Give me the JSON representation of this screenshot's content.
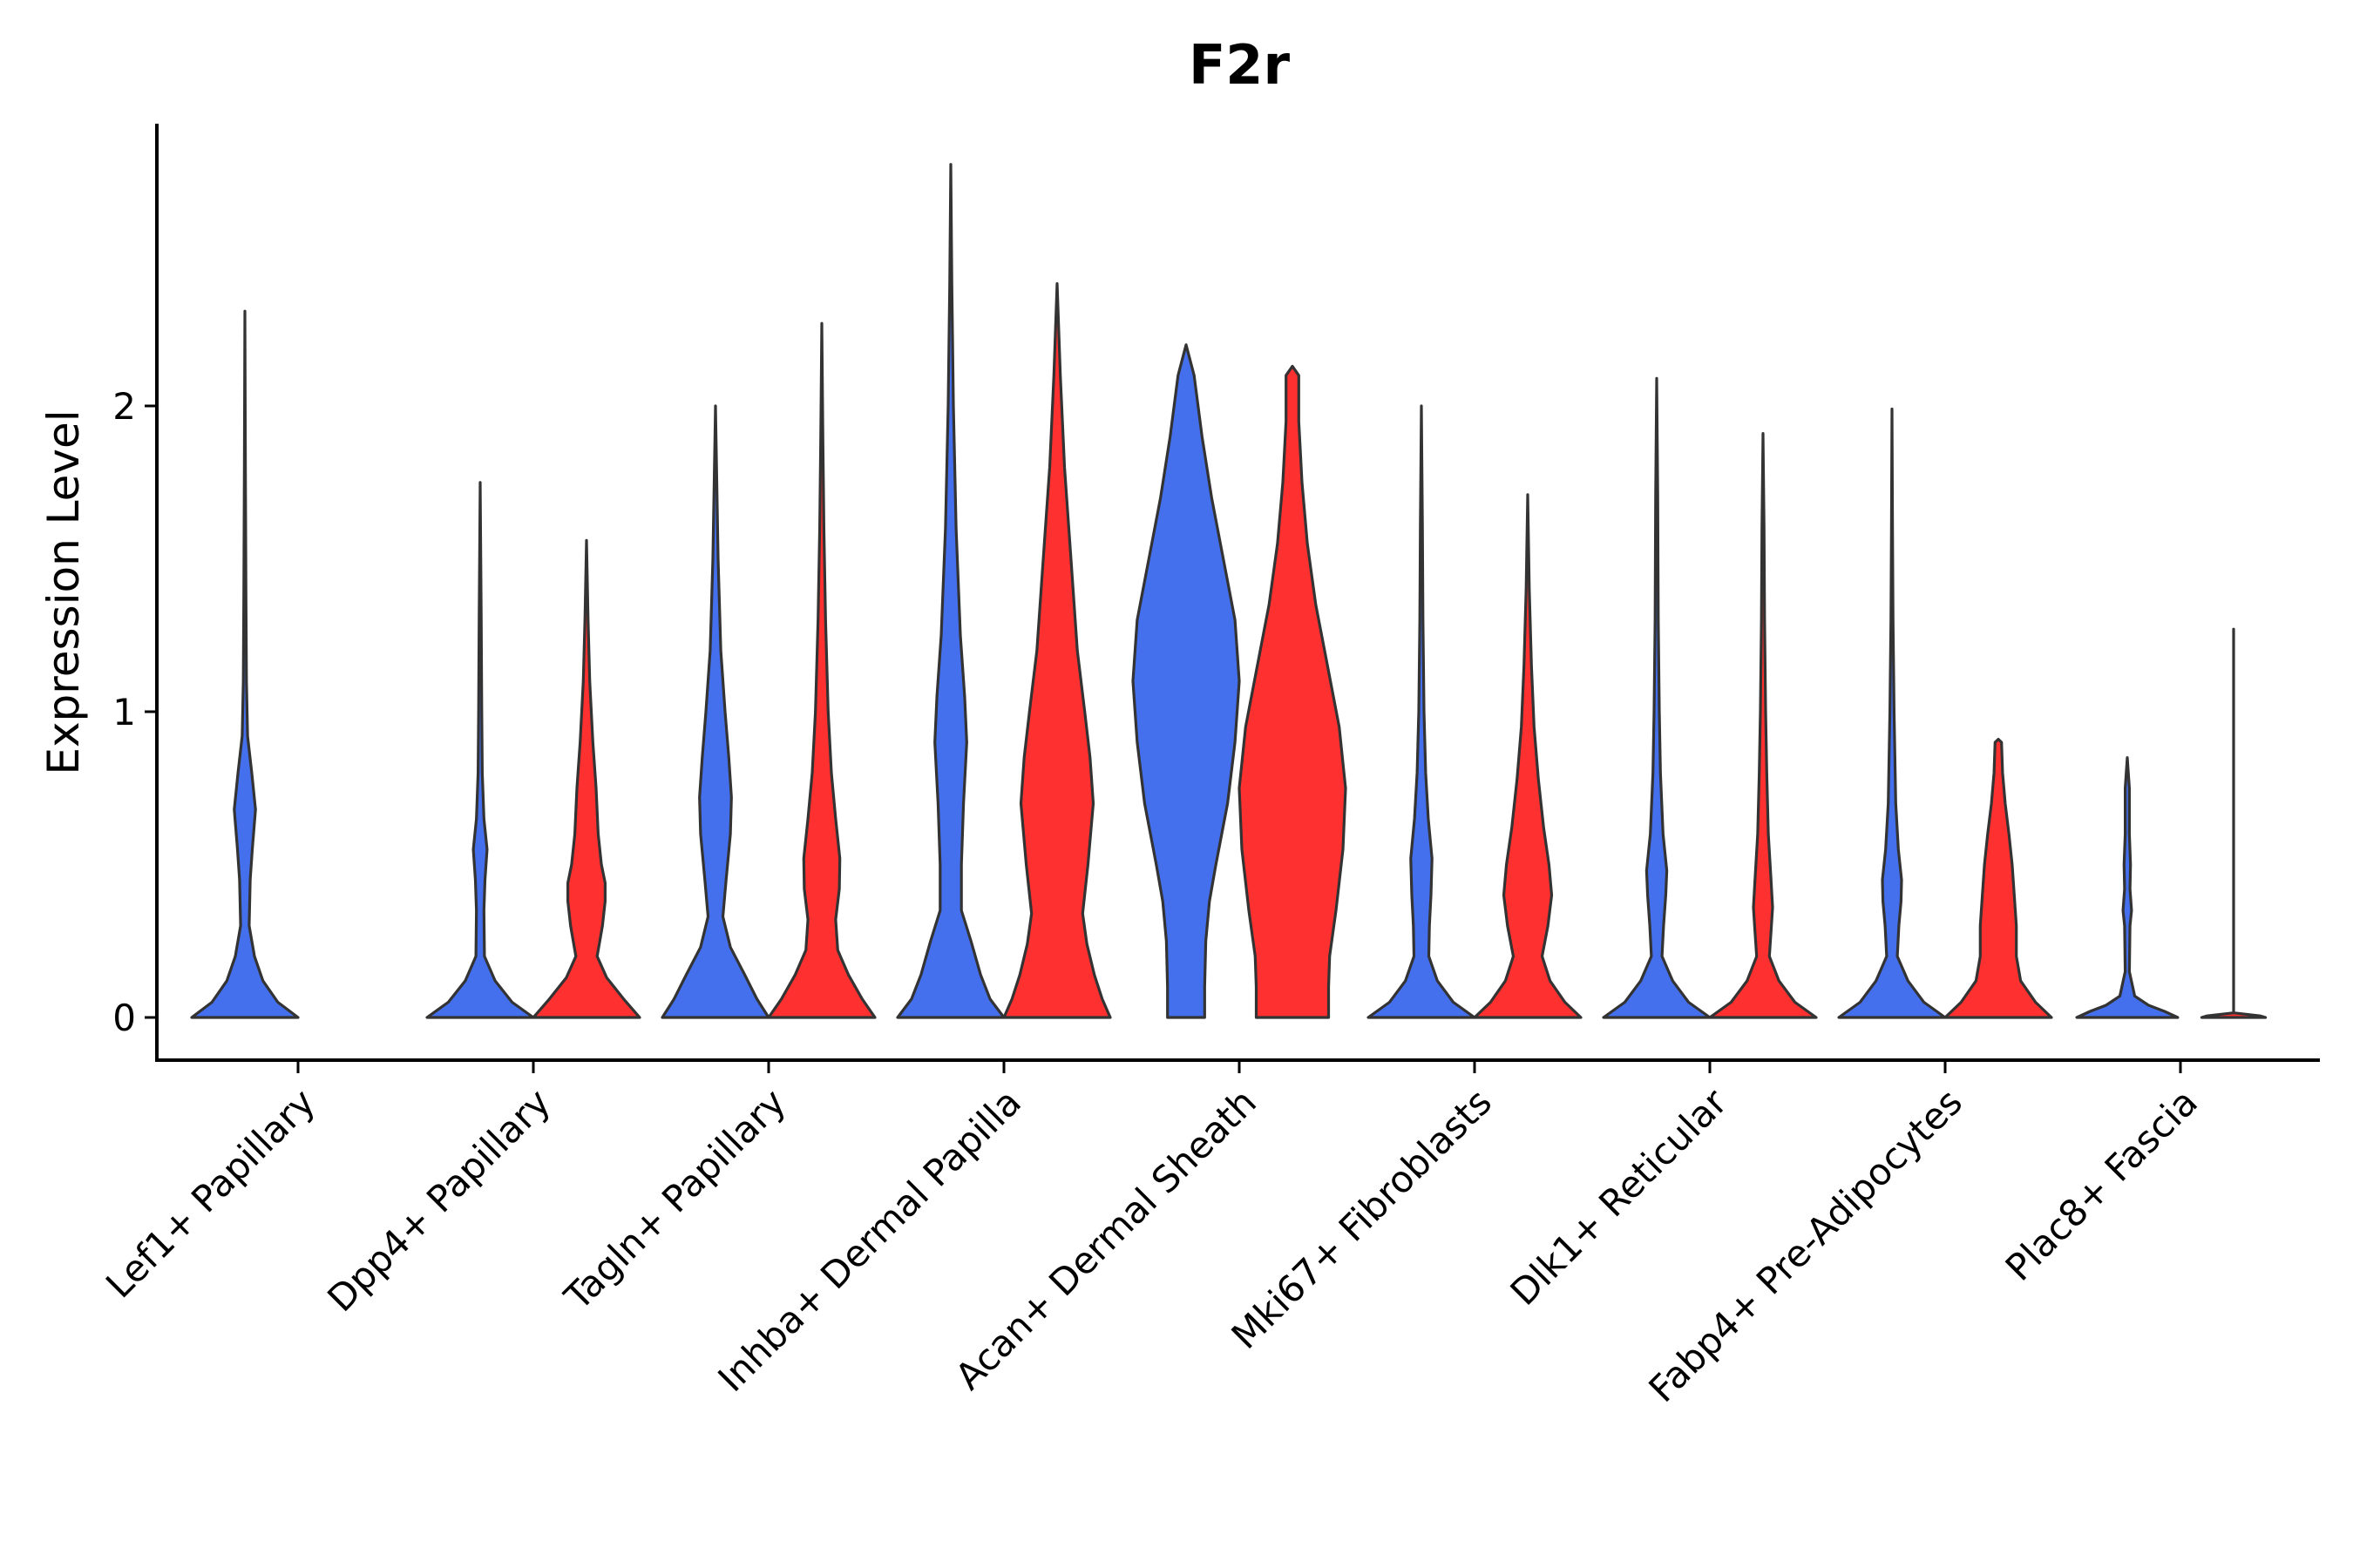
{
  "chart_data": {
    "type": "violin",
    "title": "F2r",
    "xlabel": "",
    "ylabel": "Expression Level",
    "ylim": [
      -0.14,
      2.95
    ],
    "yticks": [
      0,
      1,
      2
    ],
    "grid": false,
    "categories": [
      "Lef1+ Papillary",
      "Dpp4+ Papillary",
      "Tagln+ Papillary",
      "Inhba+ Dermal Papilla",
      "Acan+ Dermal Sheath",
      "Mki67+ Fibroblasts",
      "Dlk1+ Reticular",
      "Fabp4+ Pre-Adipocytes",
      "Plac8+ Fascia"
    ],
    "colors": {
      "group1": "#4570ED",
      "group2": "#FF3030"
    },
    "series": [
      {
        "name": "group1",
        "color": "#4570ED",
        "violins": [
          {
            "category": "Lef1+ Papillary",
            "max": 2.31,
            "profile": [
              [
                0,
                1.0
              ],
              [
                0.05,
                0.62
              ],
              [
                0.12,
                0.34
              ],
              [
                0.2,
                0.18
              ],
              [
                0.3,
                0.08
              ],
              [
                0.45,
                0.1
              ],
              [
                0.55,
                0.14
              ],
              [
                0.68,
                0.2
              ],
              [
                0.8,
                0.13
              ],
              [
                0.92,
                0.05
              ],
              [
                1.1,
                0.03
              ],
              [
                1.4,
                0.02
              ],
              [
                1.8,
                0.01
              ],
              [
                2.31,
                0.0
              ]
            ]
          },
          {
            "category": "Dpp4+ Papillary",
            "max": 1.75,
            "profile": [
              [
                0,
                1.0
              ],
              [
                0.05,
                0.6
              ],
              [
                0.12,
                0.28
              ],
              [
                0.2,
                0.08
              ],
              [
                0.35,
                0.07
              ],
              [
                0.45,
                0.09
              ],
              [
                0.55,
                0.13
              ],
              [
                0.65,
                0.07
              ],
              [
                0.8,
                0.04
              ],
              [
                1.0,
                0.03
              ],
              [
                1.3,
                0.02
              ],
              [
                1.75,
                0.0
              ]
            ]
          },
          {
            "category": "Tagln+ Papillary",
            "max": 2.0,
            "profile": [
              [
                0,
                1.0
              ],
              [
                0.06,
                0.78
              ],
              [
                0.14,
                0.55
              ],
              [
                0.23,
                0.28
              ],
              [
                0.33,
                0.14
              ],
              [
                0.45,
                0.2
              ],
              [
                0.6,
                0.28
              ],
              [
                0.72,
                0.3
              ],
              [
                0.85,
                0.25
              ],
              [
                1.0,
                0.18
              ],
              [
                1.2,
                0.1
              ],
              [
                1.5,
                0.05
              ],
              [
                1.8,
                0.02
              ],
              [
                2.0,
                0.0
              ]
            ]
          },
          {
            "category": "Inhba+ Dermal Papilla",
            "max": 2.79,
            "profile": [
              [
                0,
                1.0
              ],
              [
                0.06,
                0.74
              ],
              [
                0.14,
                0.56
              ],
              [
                0.25,
                0.38
              ],
              [
                0.35,
                0.2
              ],
              [
                0.5,
                0.2
              ],
              [
                0.7,
                0.24
              ],
              [
                0.9,
                0.3
              ],
              [
                1.05,
                0.26
              ],
              [
                1.25,
                0.18
              ],
              [
                1.6,
                0.1
              ],
              [
                2.0,
                0.05
              ],
              [
                2.4,
                0.02
              ],
              [
                2.79,
                0.0
              ]
            ]
          },
          {
            "category": "Acan+ Dermal Sheath",
            "max": 2.2,
            "profile": [
              [
                0,
                0.35
              ],
              [
                0.1,
                0.35
              ],
              [
                0.25,
                0.37
              ],
              [
                0.38,
                0.44
              ],
              [
                0.5,
                0.56
              ],
              [
                0.7,
                0.78
              ],
              [
                0.9,
                0.92
              ],
              [
                1.1,
                1.0
              ],
              [
                1.3,
                0.92
              ],
              [
                1.5,
                0.7
              ],
              [
                1.7,
                0.48
              ],
              [
                1.9,
                0.3
              ],
              [
                2.1,
                0.15
              ],
              [
                2.2,
                0.0
              ]
            ]
          },
          {
            "category": "Mki67+ Fibroblasts",
            "max": 2.0,
            "profile": [
              [
                0,
                1.0
              ],
              [
                0.05,
                0.6
              ],
              [
                0.12,
                0.3
              ],
              [
                0.2,
                0.14
              ],
              [
                0.3,
                0.15
              ],
              [
                0.4,
                0.18
              ],
              [
                0.52,
                0.2
              ],
              [
                0.65,
                0.13
              ],
              [
                0.8,
                0.08
              ],
              [
                1.0,
                0.05
              ],
              [
                1.3,
                0.03
              ],
              [
                1.6,
                0.02
              ],
              [
                2.0,
                0.0
              ]
            ]
          },
          {
            "category": "Dlk1+ Reticular",
            "max": 2.09,
            "profile": [
              [
                0,
                1.0
              ],
              [
                0.05,
                0.6
              ],
              [
                0.12,
                0.3
              ],
              [
                0.2,
                0.1
              ],
              [
                0.3,
                0.13
              ],
              [
                0.4,
                0.17
              ],
              [
                0.48,
                0.19
              ],
              [
                0.6,
                0.12
              ],
              [
                0.8,
                0.07
              ],
              [
                1.0,
                0.05
              ],
              [
                1.3,
                0.03
              ],
              [
                1.7,
                0.02
              ],
              [
                2.09,
                0.0
              ]
            ]
          },
          {
            "category": "Fabp4+ Pre-Adipocytes",
            "max": 1.99,
            "profile": [
              [
                0,
                1.0
              ],
              [
                0.05,
                0.6
              ],
              [
                0.12,
                0.3
              ],
              [
                0.2,
                0.1
              ],
              [
                0.3,
                0.13
              ],
              [
                0.38,
                0.17
              ],
              [
                0.45,
                0.18
              ],
              [
                0.55,
                0.12
              ],
              [
                0.7,
                0.07
              ],
              [
                1.0,
                0.04
              ],
              [
                1.3,
                0.02
              ],
              [
                1.6,
                0.01
              ],
              [
                1.99,
                0.0
              ]
            ]
          },
          {
            "category": "Plac8+ Fascia",
            "max": 0.85,
            "profile": [
              [
                0,
                0.95
              ],
              [
                0.02,
                0.7
              ],
              [
                0.04,
                0.4
              ],
              [
                0.07,
                0.14
              ],
              [
                0.15,
                0.04
              ],
              [
                0.3,
                0.05
              ],
              [
                0.35,
                0.08
              ],
              [
                0.42,
                0.05
              ],
              [
                0.5,
                0.06
              ],
              [
                0.6,
                0.04
              ],
              [
                0.75,
                0.04
              ],
              [
                0.85,
                0.0
              ]
            ]
          }
        ]
      },
      {
        "name": "group2",
        "color": "#FF3030",
        "violins": [
          {
            "category": "Dpp4+ Papillary",
            "max": 1.56,
            "profile": [
              [
                0,
                1.0
              ],
              [
                0.06,
                0.7
              ],
              [
                0.13,
                0.38
              ],
              [
                0.2,
                0.2
              ],
              [
                0.3,
                0.3
              ],
              [
                0.38,
                0.35
              ],
              [
                0.44,
                0.35
              ],
              [
                0.5,
                0.28
              ],
              [
                0.6,
                0.22
              ],
              [
                0.75,
                0.18
              ],
              [
                0.9,
                0.12
              ],
              [
                1.1,
                0.06
              ],
              [
                1.3,
                0.03
              ],
              [
                1.56,
                0.0
              ]
            ]
          },
          {
            "category": "Tagln+ Papillary",
            "max": 2.27,
            "profile": [
              [
                0,
                1.0
              ],
              [
                0.06,
                0.76
              ],
              [
                0.14,
                0.5
              ],
              [
                0.22,
                0.3
              ],
              [
                0.32,
                0.26
              ],
              [
                0.42,
                0.33
              ],
              [
                0.52,
                0.34
              ],
              [
                0.65,
                0.26
              ],
              [
                0.8,
                0.18
              ],
              [
                1.0,
                0.12
              ],
              [
                1.3,
                0.07
              ],
              [
                1.6,
                0.04
              ],
              [
                1.9,
                0.02
              ],
              [
                2.27,
                0.0
              ]
            ]
          },
          {
            "category": "Inhba+ Dermal Papilla",
            "max": 2.4,
            "profile": [
              [
                0,
                1.0
              ],
              [
                0.06,
                0.85
              ],
              [
                0.14,
                0.7
              ],
              [
                0.24,
                0.56
              ],
              [
                0.34,
                0.48
              ],
              [
                0.5,
                0.58
              ],
              [
                0.7,
                0.68
              ],
              [
                0.85,
                0.62
              ],
              [
                1.0,
                0.52
              ],
              [
                1.2,
                0.38
              ],
              [
                1.5,
                0.26
              ],
              [
                1.8,
                0.14
              ],
              [
                2.1,
                0.06
              ],
              [
                2.4,
                0.0
              ]
            ]
          },
          {
            "category": "Acan+ Dermal Sheath",
            "max": 2.13,
            "profile": [
              [
                0,
                0.68
              ],
              [
                0.1,
                0.68
              ],
              [
                0.2,
                0.7
              ],
              [
                0.35,
                0.82
              ],
              [
                0.55,
                0.95
              ],
              [
                0.75,
                1.0
              ],
              [
                0.95,
                0.88
              ],
              [
                1.15,
                0.66
              ],
              [
                1.35,
                0.44
              ],
              [
                1.55,
                0.28
              ],
              [
                1.75,
                0.18
              ],
              [
                1.95,
                0.12
              ],
              [
                2.1,
                0.12
              ],
              [
                2.13,
                0.0
              ]
            ]
          },
          {
            "category": "Mki67+ Fibroblasts",
            "max": 1.71,
            "profile": [
              [
                0,
                1.0
              ],
              [
                0.05,
                0.7
              ],
              [
                0.12,
                0.42
              ],
              [
                0.2,
                0.27
              ],
              [
                0.3,
                0.38
              ],
              [
                0.4,
                0.45
              ],
              [
                0.5,
                0.4
              ],
              [
                0.62,
                0.3
              ],
              [
                0.78,
                0.2
              ],
              [
                0.95,
                0.12
              ],
              [
                1.15,
                0.07
              ],
              [
                1.4,
                0.03
              ],
              [
                1.71,
                0.0
              ]
            ]
          },
          {
            "category": "Dlk1+ Reticular",
            "max": 1.91,
            "profile": [
              [
                0,
                1.0
              ],
              [
                0.05,
                0.6
              ],
              [
                0.12,
                0.3
              ],
              [
                0.2,
                0.12
              ],
              [
                0.28,
                0.15
              ],
              [
                0.36,
                0.18
              ],
              [
                0.45,
                0.15
              ],
              [
                0.6,
                0.1
              ],
              [
                0.8,
                0.07
              ],
              [
                1.0,
                0.05
              ],
              [
                1.3,
                0.03
              ],
              [
                1.6,
                0.02
              ],
              [
                1.91,
                0.0
              ]
            ]
          },
          {
            "category": "Fabp4+ Pre-Adipocytes",
            "max": 0.91,
            "profile": [
              [
                0,
                1.0
              ],
              [
                0.05,
                0.7
              ],
              [
                0.12,
                0.42
              ],
              [
                0.2,
                0.34
              ],
              [
                0.3,
                0.34
              ],
              [
                0.4,
                0.3
              ],
              [
                0.5,
                0.26
              ],
              [
                0.6,
                0.2
              ],
              [
                0.7,
                0.13
              ],
              [
                0.8,
                0.08
              ],
              [
                0.85,
                0.07
              ],
              [
                0.9,
                0.06
              ],
              [
                0.91,
                0.0
              ]
            ]
          },
          {
            "category": "Plac8+ Fascia",
            "max": 1.27,
            "profile": [
              [
                0,
                0.6
              ],
              [
                0.005,
                0.5
              ],
              [
                0.015,
                0.0
              ],
              [
                1.27,
                0.0
              ]
            ]
          }
        ]
      }
    ]
  }
}
